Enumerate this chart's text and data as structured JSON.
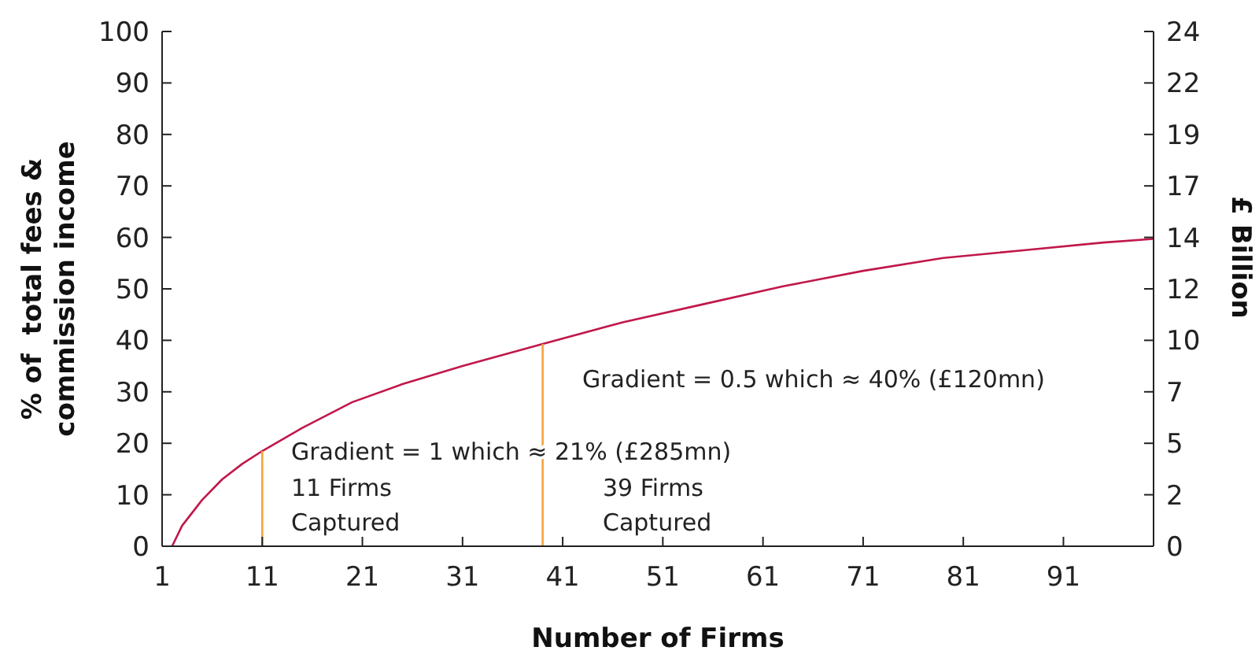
{
  "chart_data": {
    "type": "line",
    "xlabel": "Number of Firms",
    "ylabel": "% of  total fees &\ncommission income",
    "y2label": "£ Billion",
    "xlim": [
      1,
      100
    ],
    "xticks": [
      1,
      11,
      21,
      31,
      41,
      51,
      61,
      71,
      81,
      91
    ],
    "ylim": [
      0,
      100
    ],
    "yticks": [
      0,
      10,
      20,
      30,
      40,
      50,
      60,
      70,
      80,
      90,
      100
    ],
    "y2lim": [
      0,
      24
    ],
    "y2ticks": [
      0,
      {
        "value": 2.4,
        "label": "2"
      },
      {
        "value": 4.8,
        "label": "5"
      },
      {
        "value": 7.2,
        "label": "7"
      },
      {
        "value": 9.6,
        "label": "10"
      },
      12,
      {
        "value": 14.4,
        "label": "14"
      },
      {
        "value": 16.8,
        "label": "17"
      },
      {
        "value": 19.2,
        "label": "19"
      },
      {
        "value": 21.6,
        "label": "22"
      },
      24
    ],
    "marker": "none",
    "line_style": "solid",
    "series": [
      {
        "color": "#c0184a",
        "x": [
          2,
          3,
          5,
          7,
          9,
          11,
          15,
          20,
          25,
          31,
          39,
          47,
          55,
          63,
          71,
          79,
          87,
          95,
          100
        ],
        "values": [
          0,
          4,
          9,
          13,
          16,
          18.5,
          23,
          28,
          31.5,
          35,
          39.3,
          43.5,
          47,
          50.5,
          53.5,
          56,
          57.5,
          59,
          59.7
        ]
      },
      {
        "color": "#f2a33a",
        "x": [
          11,
          11
        ],
        "values": [
          0,
          18.5
        ]
      },
      {
        "color": "#f2a33a",
        "x": [
          39,
          39
        ],
        "values": [
          0,
          39.3
        ]
      }
    ],
    "annotations": [
      "Gradient = 1  which ≈ 21% (£285mn)",
      "11 Firms\nCaptured",
      "39 Firms\nCaptured",
      "Gradient = 0.5  which ≈ 40% (£120mn)"
    ]
  }
}
